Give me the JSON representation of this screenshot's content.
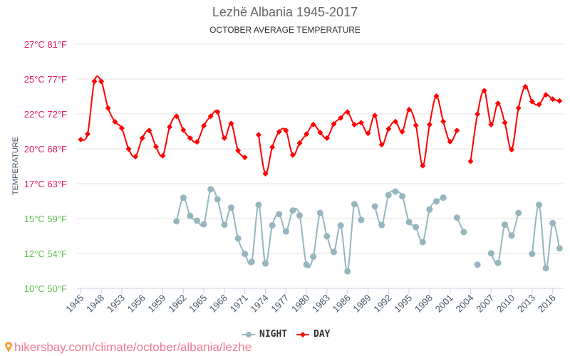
{
  "chart_data": {
    "type": "line",
    "title": "Lezhë Albania 1945-2017",
    "subtitle": "OCTOBER AVERAGE TEMPERATURE",
    "ylabel": "TEMPERATURE",
    "xlabel": "",
    "ylim": [
      10,
      27
    ],
    "grid": true,
    "legend_position": "bottom",
    "y_ticks": [
      {
        "label": "27°C 81°F",
        "color": "#e8195a"
      },
      {
        "label": "25°C 77°F",
        "color": "#e8195a"
      },
      {
        "label": "22°C 72°F",
        "color": "#e8195a"
      },
      {
        "label": "20°C 68°F",
        "color": "#e8195a"
      },
      {
        "label": "17°C 63°F",
        "color": "#e8195a"
      },
      {
        "label": "15°C 59°F",
        "color": "#5cbf4a"
      },
      {
        "label": "12°C 54°F",
        "color": "#5cbf4a"
      },
      {
        "label": "10°C 50°F",
        "color": "#5cbf4a"
      }
    ],
    "x_tick_labels": [
      "1945",
      "1948",
      "1953",
      "1956",
      "1959",
      "1962",
      "1965",
      "1968",
      "1971",
      "1974",
      "1977",
      "1980",
      "1983",
      "1986",
      "1989",
      "1992",
      "1995",
      "1998",
      "2001",
      "2004",
      "2007",
      "2010",
      "2013",
      "2016"
    ],
    "category_count": 71,
    "series": [
      {
        "name": "NIGHT",
        "color": "#95b6bf",
        "marker": "circle",
        "values": [
          null,
          null,
          null,
          null,
          null,
          null,
          null,
          null,
          null,
          null,
          null,
          null,
          null,
          null,
          14.67,
          16.31,
          15.04,
          14.71,
          14.46,
          16.9,
          16.2,
          14.43,
          15.62,
          13.47,
          12.4,
          11.85,
          15.81,
          11.73,
          14.38,
          15.17,
          13.96,
          15.42,
          15.07,
          11.65,
          12.2,
          15.25,
          13.63,
          12.53,
          14.38,
          11.19,
          15.86,
          14.76,
          null,
          15.7,
          14.41,
          16.49,
          16.74,
          16.41,
          14.62,
          14.26,
          13.22,
          15.49,
          16.06,
          16.31,
          null,
          14.92,
          13.92,
          null,
          11.65,
          null,
          12.44,
          11.77,
          14.43,
          13.68,
          15.25,
          null,
          12.4,
          15.81,
          11.4,
          14.54,
          12.78
        ]
      },
      {
        "name": "DAY",
        "color": "#ff0000",
        "marker": "diamond",
        "values": [
          20.36,
          20.74,
          24.41,
          24.41,
          22.55,
          21.6,
          21.15,
          19.7,
          19.17,
          20.46,
          20.99,
          19.86,
          19.23,
          21.24,
          21.98,
          21.02,
          20.46,
          20.19,
          21.32,
          21.98,
          22.28,
          20.46,
          21.48,
          19.59,
          19.12,
          null,
          20.69,
          17.98,
          19.83,
          20.9,
          20.99,
          19.28,
          20.11,
          20.74,
          21.4,
          20.85,
          20.46,
          21.45,
          21.86,
          22.28,
          21.4,
          21.53,
          20.79,
          22.03,
          20.0,
          21.1,
          21.61,
          20.9,
          22.44,
          21.35,
          18.54,
          21.4,
          23.38,
          21.61,
          20.21,
          20.99,
          null,
          18.84,
          22.13,
          23.76,
          21.4,
          22.88,
          21.53,
          19.66,
          22.55,
          24.04,
          23.0,
          22.8,
          23.47,
          23.17,
          23.05
        ]
      }
    ]
  },
  "watermark": "hikersbay.com/climate/october/albania/lezhe"
}
